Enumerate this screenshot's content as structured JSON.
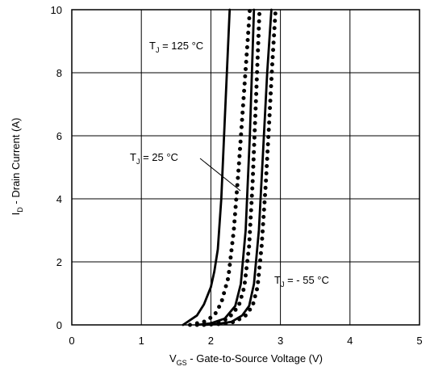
{
  "chart_data": {
    "type": "line",
    "xlabel_main": "V",
    "xlabel_sub": "GS",
    "xlabel_rest": " - Gate-to-Source Voltage (V)",
    "ylabel_main": "I",
    "ylabel_sub": "D",
    "ylabel_rest": " - Drain Current  (A)",
    "xlim": [
      0,
      5
    ],
    "ylim": [
      0,
      10
    ],
    "xticks": [
      "0",
      "1",
      "2",
      "3",
      "4",
      "5"
    ],
    "yticks": [
      "0",
      "2",
      "4",
      "6",
      "8",
      "10"
    ],
    "grid": true,
    "annotations": [
      {
        "main": "T",
        "sub": "J",
        "rest": " = 125 °C"
      },
      {
        "main": "T",
        "sub": "J",
        "rest": " = 25 °C"
      },
      {
        "main": "T",
        "sub": "J",
        "rest": " = - 55 °C"
      }
    ],
    "series": [
      {
        "style": "solid",
        "x": [
          1.6,
          1.8,
          1.9,
          2.0,
          2.05,
          2.1,
          2.15,
          2.2,
          2.27
        ],
        "y": [
          0.0,
          0.3,
          0.65,
          1.2,
          1.7,
          2.4,
          4.0,
          6.5,
          10.0
        ]
      },
      {
        "style": "dotted",
        "x": [
          1.7,
          1.9,
          2.05,
          2.15,
          2.25,
          2.33,
          2.4,
          2.48,
          2.56
        ],
        "y": [
          0.0,
          0.1,
          0.3,
          0.7,
          1.5,
          3.0,
          5.0,
          7.5,
          10.0
        ]
      },
      {
        "style": "solid",
        "x": [
          1.8,
          2.0,
          2.2,
          2.35,
          2.43,
          2.5,
          2.56,
          2.62
        ],
        "y": [
          0.0,
          0.05,
          0.2,
          0.6,
          1.3,
          3.0,
          6.0,
          10.0
        ]
      },
      {
        "style": "dotted",
        "x": [
          1.8,
          2.05,
          2.25,
          2.4,
          2.48,
          2.55,
          2.6,
          2.65,
          2.7
        ],
        "y": [
          0.0,
          0.05,
          0.2,
          0.6,
          1.2,
          2.5,
          4.5,
          7.2,
          10.0
        ]
      },
      {
        "style": "solid",
        "x": [
          1.9,
          2.1,
          2.3,
          2.45,
          2.55,
          2.62,
          2.69,
          2.75,
          2.81,
          2.87
        ],
        "y": [
          0.0,
          0.03,
          0.1,
          0.3,
          0.6,
          1.3,
          3.0,
          5.5,
          8.0,
          10.0
        ]
      },
      {
        "style": "dotted",
        "x": [
          1.9,
          2.15,
          2.35,
          2.5,
          2.6,
          2.67,
          2.73,
          2.79,
          2.84,
          2.88,
          2.93
        ],
        "y": [
          0.0,
          0.03,
          0.1,
          0.3,
          0.6,
          1.2,
          2.5,
          4.5,
          6.5,
          8.2,
          10.0
        ]
      }
    ]
  }
}
